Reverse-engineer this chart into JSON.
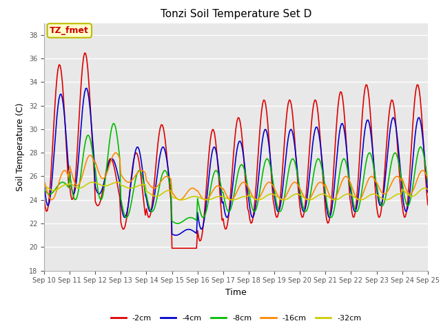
{
  "title": "Tonzi Soil Temperature Set D",
  "xlabel": "Time",
  "ylabel": "Soil Temperature (C)",
  "ylim": [
    18,
    39
  ],
  "yticks": [
    18,
    20,
    22,
    24,
    26,
    28,
    30,
    32,
    34,
    36,
    38
  ],
  "annotation": "TZ_fmet",
  "annotation_color": "#cc0000",
  "annotation_bg": "#ffffcc",
  "annotation_border": "#bbbb00",
  "bg_color": "#e8e8e8",
  "lines": {
    "-2cm": {
      "color": "#dd0000",
      "lw": 1.2
    },
    "-4cm": {
      "color": "#0000cc",
      "lw": 1.2
    },
    "-8cm": {
      "color": "#00bb00",
      "lw": 1.2
    },
    "-16cm": {
      "color": "#ff8800",
      "lw": 1.2
    },
    "-32cm": {
      "color": "#cccc00",
      "lw": 1.2
    }
  },
  "x_tick_labels": [
    "Sep 10",
    "Sep 11",
    "Sep 12",
    "Sep 13",
    "Sep 14",
    "Sep 15",
    "Sep 16",
    "Sep 17",
    "Sep 18",
    "Sep 19",
    "Sep 20",
    "Sep 21",
    "Sep 22",
    "Sep 23",
    "Sep 24",
    "Sep 25"
  ],
  "legend_labels": [
    "-2cm",
    "-4cm",
    "-8cm",
    "-16cm",
    "-32cm"
  ],
  "legend_colors": [
    "#dd0000",
    "#0000cc",
    "#00bb00",
    "#ff8800",
    "#cccc00"
  ],
  "day_peaks_2": [
    35.5,
    36.5,
    27.5,
    28.0,
    30.4,
    19.9,
    30.0,
    31.0,
    32.5,
    32.5,
    32.5,
    33.2,
    33.8,
    32.5,
    33.8
  ],
  "day_troughs_2": [
    23.0,
    24.0,
    23.5,
    21.5,
    22.5,
    19.9,
    20.5,
    21.5,
    22.0,
    22.5,
    22.5,
    22.0,
    22.5,
    22.5,
    22.5
  ],
  "day_peaks_4": [
    33.0,
    33.5,
    27.5,
    28.5,
    28.5,
    21.5,
    28.5,
    29.0,
    30.0,
    30.0,
    30.2,
    30.5,
    30.8,
    31.0,
    31.0
  ],
  "day_troughs_4": [
    23.5,
    24.5,
    24.5,
    22.5,
    23.0,
    21.0,
    21.5,
    22.5,
    22.5,
    23.0,
    23.0,
    22.5,
    23.0,
    23.5,
    23.0
  ],
  "day_peaks_8": [
    25.5,
    29.5,
    30.5,
    26.5,
    26.5,
    22.5,
    26.5,
    27.0,
    27.5,
    27.5,
    27.5,
    27.5,
    28.0,
    28.0,
    28.5
  ],
  "day_troughs_8": [
    24.5,
    24.0,
    24.0,
    22.5,
    23.0,
    22.0,
    22.5,
    23.0,
    23.0,
    23.0,
    23.0,
    22.5,
    23.0,
    23.5,
    23.5
  ],
  "day_peaks_16": [
    26.5,
    27.8,
    28.0,
    26.5,
    26.0,
    25.0,
    25.2,
    25.5,
    25.5,
    25.5,
    25.5,
    26.0,
    26.0,
    26.0,
    26.5
  ],
  "day_troughs_16": [
    24.0,
    25.2,
    25.8,
    25.5,
    25.0,
    24.0,
    24.0,
    24.0,
    24.0,
    24.0,
    24.0,
    24.0,
    24.0,
    24.5,
    24.5
  ],
  "day_peaks_32": [
    25.3,
    25.5,
    25.5,
    25.3,
    24.8,
    24.3,
    24.3,
    24.3,
    24.5,
    24.5,
    24.5,
    24.5,
    24.5,
    24.5,
    25.0
  ],
  "day_troughs_32": [
    24.8,
    25.0,
    25.2,
    25.0,
    24.3,
    24.0,
    24.0,
    24.0,
    24.0,
    24.0,
    24.0,
    24.0,
    24.0,
    24.0,
    24.3
  ],
  "phase_offsets": [
    0.0,
    0.05,
    0.12,
    0.2,
    0.28
  ]
}
